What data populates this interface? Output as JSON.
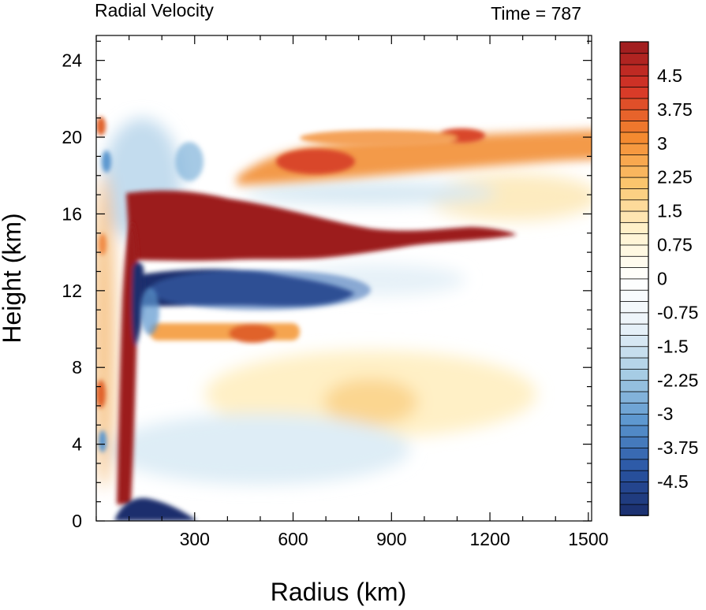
{
  "chart_data": {
    "type": "heatmap",
    "title": "Radial Velocity",
    "subtitle": "Time = 787",
    "xlabel": "Radius (km)",
    "ylabel": "Height (km)",
    "xlim": [
      0,
      1510
    ],
    "ylim": [
      0,
      25.3
    ],
    "x_ticks": [
      300,
      600,
      900,
      1200,
      1500
    ],
    "y_ticks": [
      0,
      4,
      8,
      12,
      16,
      20,
      24
    ],
    "x_tick_labels": [
      "300",
      "600",
      "900",
      "1200",
      "1500"
    ],
    "y_tick_labels": [
      "0",
      "4",
      "8",
      "12",
      "16",
      "20",
      "24"
    ],
    "grid": false,
    "colorbar": {
      "placement": "right",
      "min": -5.25,
      "max": 5.25,
      "step": 0.25,
      "tick_labels": [
        "4.5",
        "3.75",
        "3",
        "2.25",
        "1.5",
        "0.75",
        "0",
        "-0.75",
        "-1.5",
        "-2.25",
        "-3",
        "-3.75",
        "-4.5"
      ],
      "tick_values": [
        4.5,
        3.75,
        3,
        2.25,
        1.5,
        0.75,
        0,
        -0.75,
        -1.5,
        -2.25,
        -3,
        -3.75,
        -4.5
      ],
      "colors": [
        "#1a2d6b",
        "#2a56a5",
        "#5c97cf",
        "#a8cde4",
        "#eaf3f9",
        "#ffffff",
        "#fff3cf",
        "#fbc66e",
        "#f4892f",
        "#d73527",
        "#9b1b1e"
      ]
    },
    "features": [
      {
        "name": "upper-level outflow jet",
        "r": [
          80,
          1080
        ],
        "z": [
          13.3,
          17.2
        ],
        "value": 5.25
      },
      {
        "name": "mid-level inflow",
        "r": [
          80,
          820
        ],
        "z": [
          11.0,
          13.0
        ],
        "value": -5.25
      },
      {
        "name": "upper outflow layer",
        "r": [
          220,
          1280
        ],
        "z": [
          17.8,
          20.7
        ],
        "value": 3.0
      },
      {
        "name": "low-level inflow",
        "r": [
          60,
          260
        ],
        "z": [
          0,
          1.2
        ],
        "value": -5.25
      },
      {
        "name": "eyewall outflow sliver",
        "r": [
          55,
          150
        ],
        "z": [
          1.0,
          12.0
        ],
        "value": 5.25
      },
      {
        "name": "mid-level outflow",
        "r": [
          200,
          700
        ],
        "z": [
          9.3,
          10.8
        ],
        "value": 2.5
      },
      {
        "name": "weak upper outflow",
        "r": [
          1050,
          1500
        ],
        "z": [
          15.5,
          17.5
        ],
        "value": 1.0
      },
      {
        "name": "weak low-level outflow",
        "r": [
          300,
          1100
        ],
        "z": [
          4.5,
          9.0
        ],
        "value": 0.8
      },
      {
        "name": "weak low-level inflow",
        "r": [
          100,
          900
        ],
        "z": [
          1.0,
          6.0
        ],
        "value": -0.8
      }
    ]
  }
}
